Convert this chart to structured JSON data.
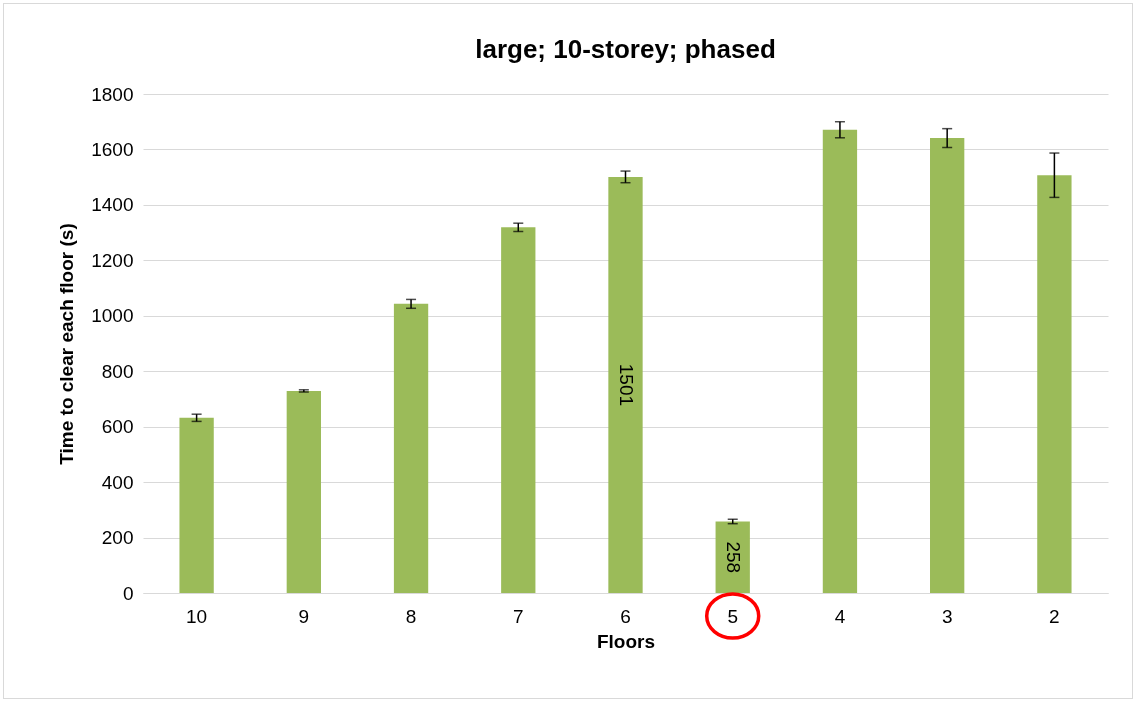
{
  "chart_data": {
    "type": "bar",
    "title": "large; 10-storey; phased",
    "xlabel": "Floors",
    "ylabel": "Time to clear each floor (s)",
    "categories": [
      "10",
      "9",
      "8",
      "7",
      "6",
      "5",
      "4",
      "3",
      "2"
    ],
    "values": [
      632,
      729,
      1043,
      1319,
      1501,
      258,
      1671,
      1641,
      1507
    ],
    "errors": [
      13,
      4,
      16,
      15,
      21,
      8,
      29,
      34,
      80
    ],
    "value_labels": [
      null,
      null,
      null,
      null,
      "1501",
      "258",
      null,
      null,
      null
    ],
    "color": "#9bbb59",
    "ylim": [
      0,
      1800
    ],
    "yticks": [
      0,
      200,
      400,
      600,
      800,
      1000,
      1200,
      1400,
      1600,
      1800
    ],
    "grid": "y"
  }
}
